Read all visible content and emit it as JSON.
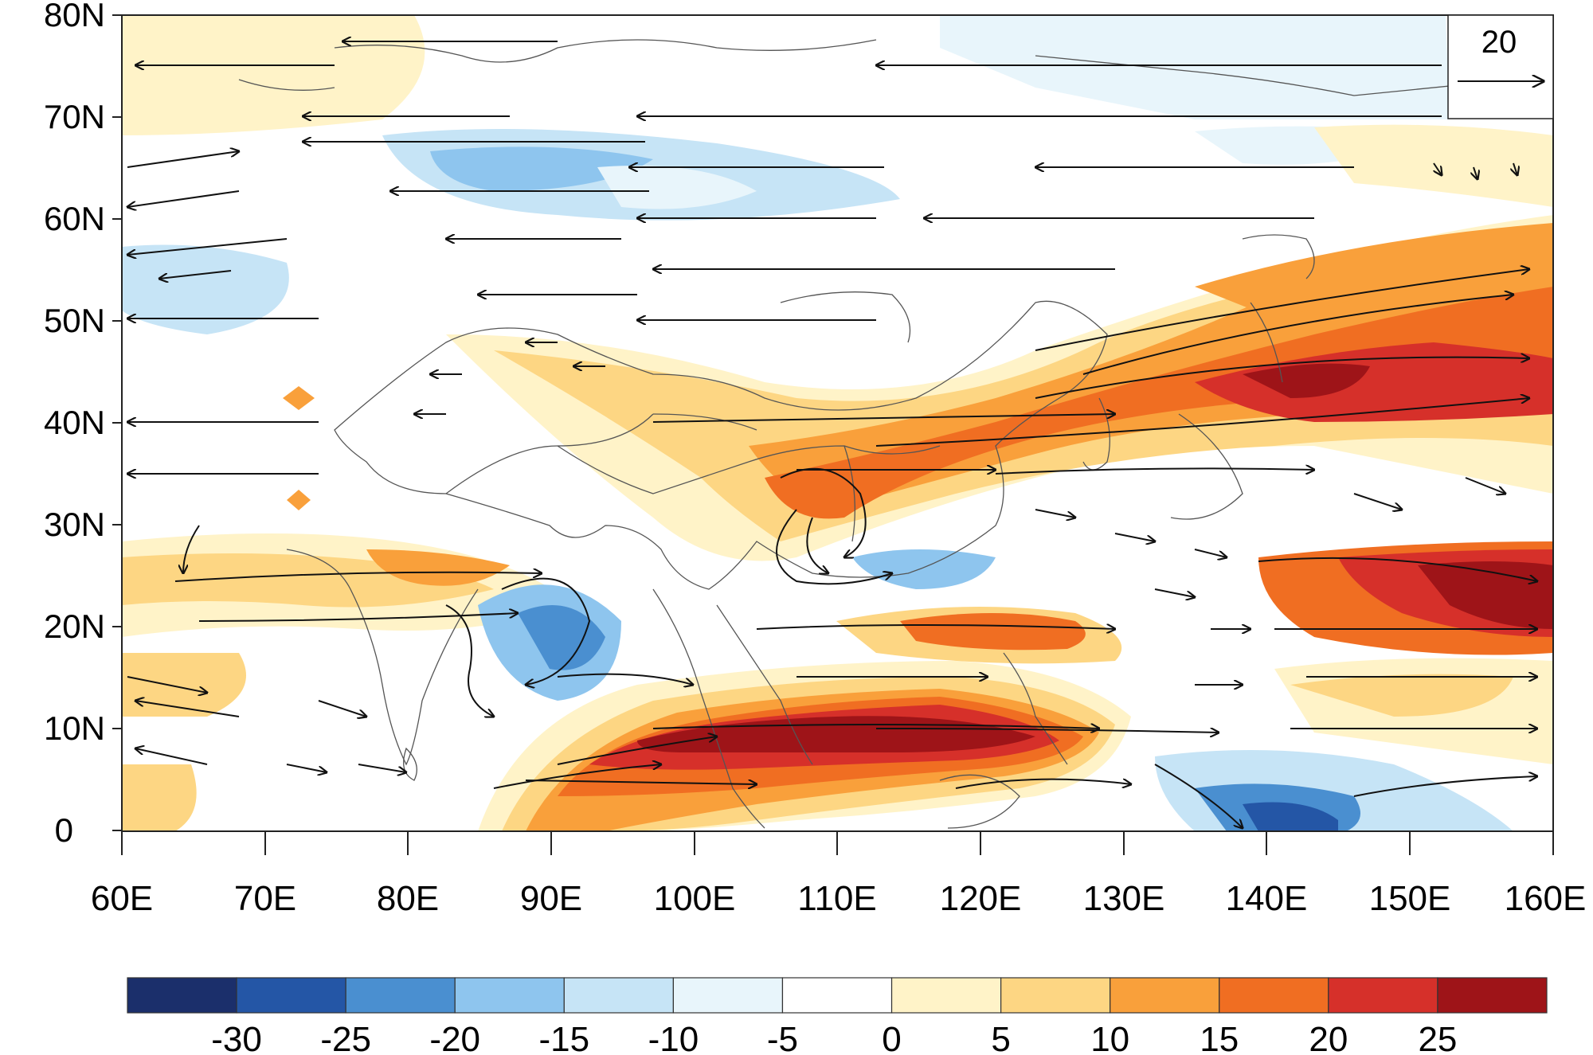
{
  "map": {
    "lat_ticks": [
      "80N",
      "70N",
      "60N",
      "50N",
      "40N",
      "30N",
      "20N",
      "10N",
      "0"
    ],
    "lon_ticks": [
      "60E",
      "70E",
      "80E",
      "90E",
      "100E",
      "110E",
      "120E",
      "130E",
      "140E",
      "150E",
      "160E"
    ],
    "lat_range": [
      0,
      80
    ],
    "lon_range": [
      60,
      160
    ],
    "reference_vector": {
      "label": "20",
      "magnitude": 20
    },
    "colorbar": {
      "labels": [
        "-30",
        "-25",
        "-20",
        "-15",
        "-10",
        "-5",
        "0",
        "5",
        "10",
        "15",
        "20",
        "25"
      ],
      "colors": [
        "#1b2f6b",
        "#2456a6",
        "#4a8fd0",
        "#8ec5ee",
        "#c6e4f6",
        "#e8f5fb",
        "#ffffff",
        "#fff3c8",
        "#fdd683",
        "#f9a03b",
        "#f06e22",
        "#d6302a",
        "#9e1418"
      ]
    },
    "vector_colors": {
      "arrow": "#111111",
      "land_outline": "#555555"
    }
  }
}
